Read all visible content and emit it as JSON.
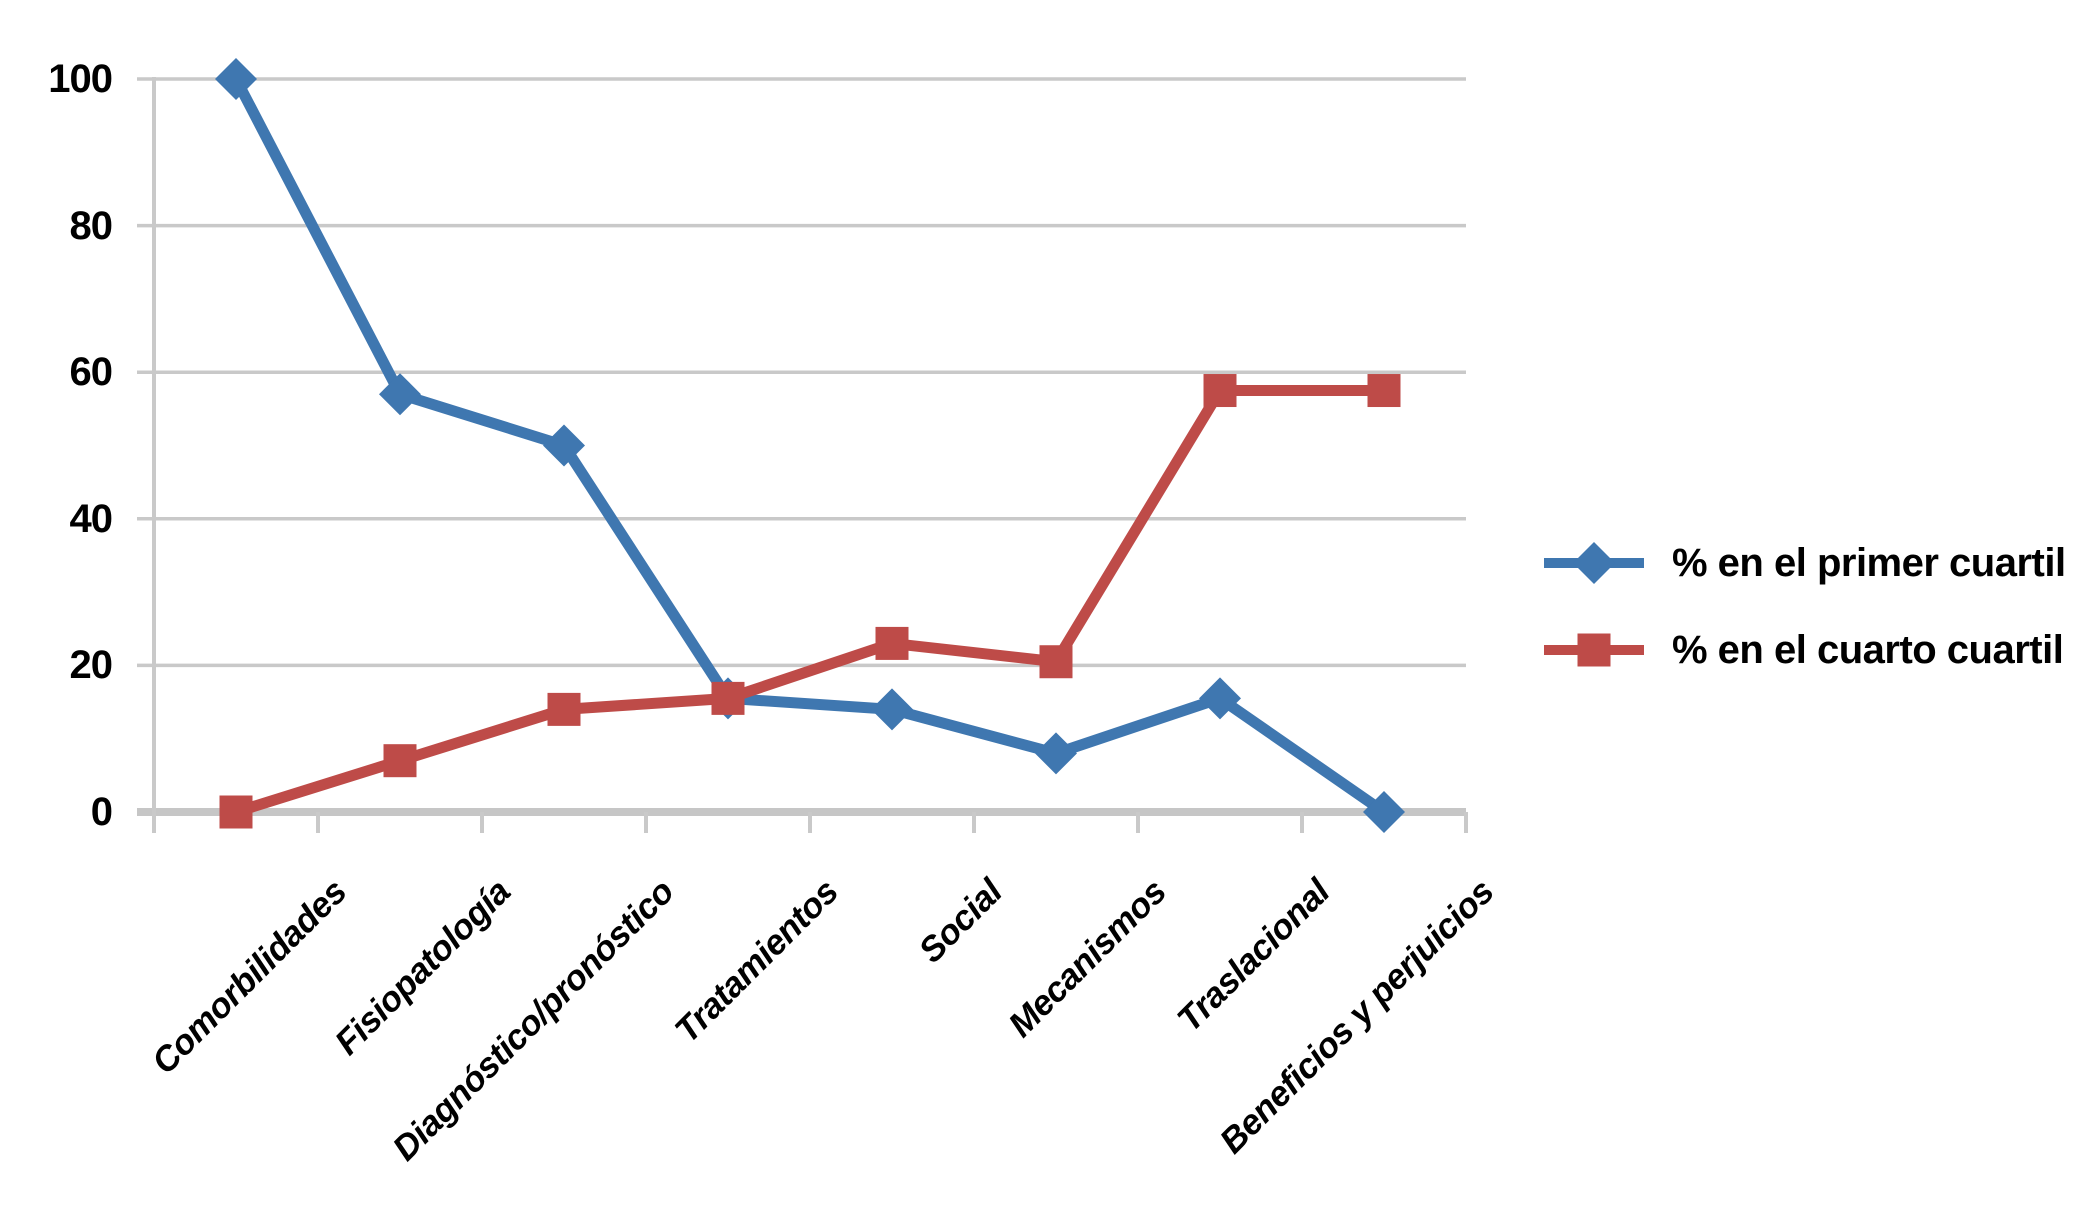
{
  "chart_data": {
    "type": "line",
    "title": "",
    "categories": [
      "Comorbilidades",
      "Fisiopatología",
      "Diagnóstico/pronóstico",
      "Tratamientos",
      "Social",
      "Mecanismos",
      "Traslacional",
      "Beneficios y perjuicios"
    ],
    "series": [
      {
        "name": "% en el primer cuartil",
        "marker": "diamond",
        "color": "#3F77B0",
        "values": [
          100,
          57,
          50,
          15.5,
          14,
          8,
          15.5,
          0
        ]
      },
      {
        "name": "% en el cuarto cuartil",
        "marker": "square",
        "color": "#BE4B48",
        "values": [
          0,
          7,
          14,
          15.5,
          23,
          20.5,
          57.5,
          57.5
        ]
      }
    ],
    "y_axis": {
      "min": 0,
      "max": 100,
      "step": 20,
      "tick_labels": [
        "100",
        "80",
        "60",
        "40",
        "20",
        "0"
      ]
    },
    "x_axis": {
      "label_rotation_deg": -45
    },
    "grid": true,
    "gridline_color": "#C9C9C9",
    "axis_color": "#C6C6C6",
    "legend_position": "right"
  }
}
